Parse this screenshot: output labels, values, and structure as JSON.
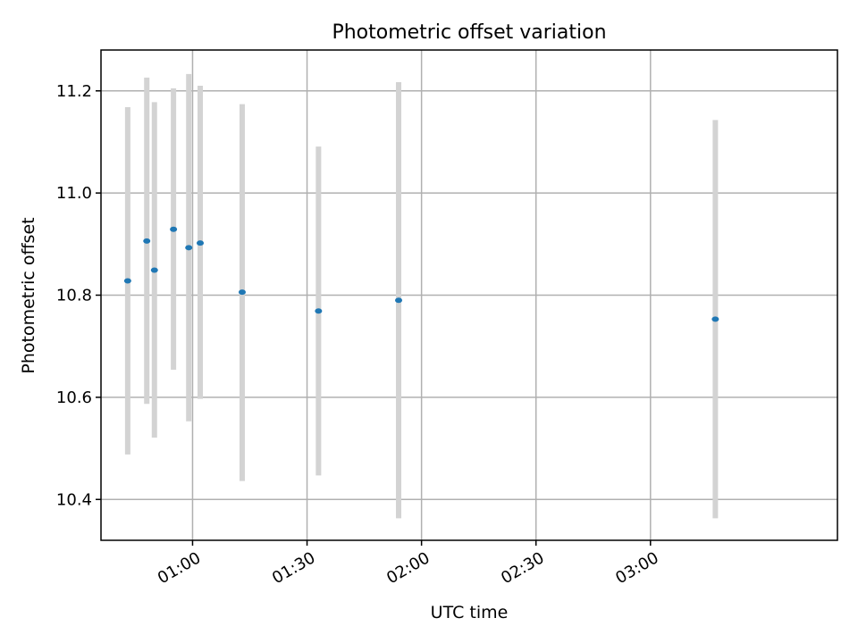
{
  "chart_data": {
    "type": "scatter",
    "title": "Photometric offset variation",
    "xlabel": "UTC time",
    "ylabel": "Photometric offset",
    "x_axis": "time",
    "xlim": [
      "00:36",
      "03:49"
    ],
    "ylim": [
      10.32,
      11.28
    ],
    "xticks": [
      "01:00",
      "01:30",
      "02:00",
      "02:30",
      "03:00"
    ],
    "yticks": [
      10.4,
      10.6,
      10.8,
      11.0,
      11.2
    ],
    "grid": true,
    "marker_color": "#1f77b4",
    "errorbar_color": "#d3d3d3",
    "points": [
      {
        "time": "00:43",
        "y": 10.828,
        "ylow": 10.488,
        "yhigh": 11.168
      },
      {
        "time": "00:48",
        "y": 10.906,
        "ylow": 10.587,
        "yhigh": 11.226
      },
      {
        "time": "00:50",
        "y": 10.849,
        "ylow": 10.521,
        "yhigh": 11.178
      },
      {
        "time": "00:55",
        "y": 10.929,
        "ylow": 10.654,
        "yhigh": 11.205
      },
      {
        "time": "00:59",
        "y": 10.893,
        "ylow": 10.553,
        "yhigh": 11.233
      },
      {
        "time": "01:02",
        "y": 10.902,
        "ylow": 10.597,
        "yhigh": 11.21
      },
      {
        "time": "01:13",
        "y": 10.806,
        "ylow": 10.436,
        "yhigh": 11.174
      },
      {
        "time": "01:33",
        "y": 10.769,
        "ylow": 10.447,
        "yhigh": 11.091
      },
      {
        "time": "01:54",
        "y": 10.79,
        "ylow": 10.363,
        "yhigh": 11.217
      },
      {
        "time": "03:17",
        "y": 10.753,
        "ylow": 10.363,
        "yhigh": 11.143
      }
    ]
  }
}
